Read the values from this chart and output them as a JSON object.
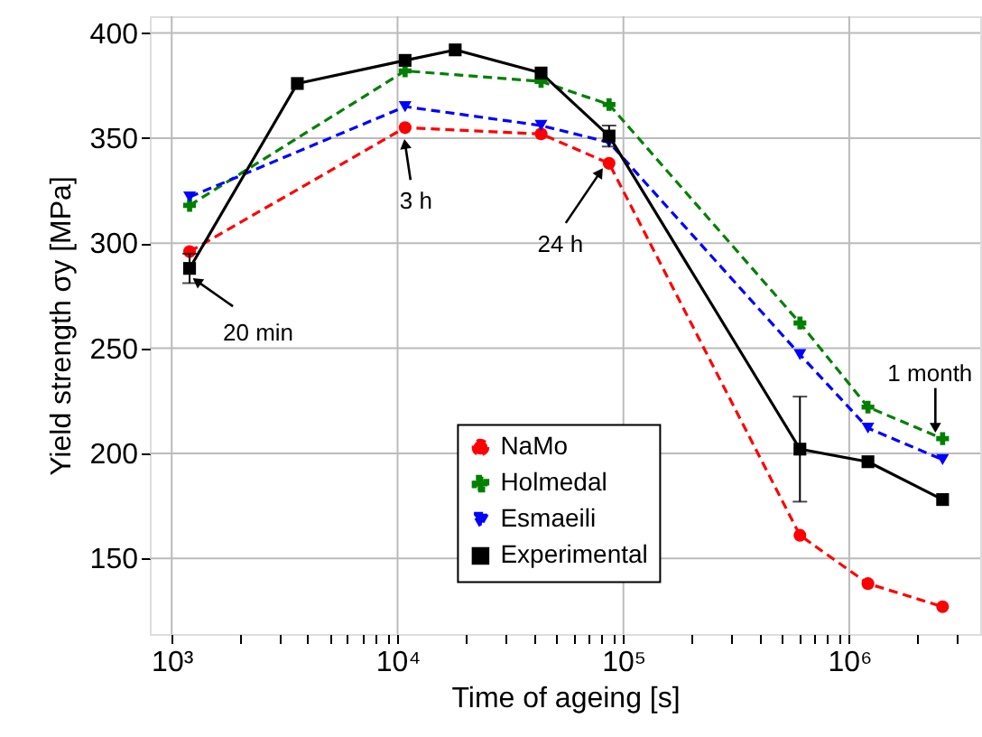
{
  "chart_data": {
    "type": "line",
    "xlabel": "Time of ageing [s]",
    "ylabel": "Yield strength σy [MPa]",
    "log": "x",
    "grid": true,
    "legend": "bottom",
    "xlim": [
      800,
      3800000
    ],
    "ylim": [
      114,
      408
    ],
    "xticks": [
      {
        "value": 1000,
        "label": "10³"
      },
      {
        "value": 2000,
        "label": null
      },
      {
        "value": 3000,
        "label": null
      },
      {
        "value": 4000,
        "label": null
      },
      {
        "value": 5000,
        "label": null
      },
      {
        "value": 6000,
        "label": null
      },
      {
        "value": 7000,
        "label": null
      },
      {
        "value": 8000,
        "label": null
      },
      {
        "value": 9000,
        "label": null
      },
      {
        "value": 10000,
        "label": "10⁴"
      },
      {
        "value": 20000,
        "label": null
      },
      {
        "value": 30000,
        "label": null
      },
      {
        "value": 40000,
        "label": null
      },
      {
        "value": 50000,
        "label": null
      },
      {
        "value": 60000,
        "label": null
      },
      {
        "value": 70000,
        "label": null
      },
      {
        "value": 80000,
        "label": null
      },
      {
        "value": 90000,
        "label": null
      },
      {
        "value": 100000,
        "label": "10⁵"
      },
      {
        "value": 200000,
        "label": null
      },
      {
        "value": 300000,
        "label": null
      },
      {
        "value": 400000,
        "label": null
      },
      {
        "value": 500000,
        "label": null
      },
      {
        "value": 600000,
        "label": null
      },
      {
        "value": 700000,
        "label": null
      },
      {
        "value": 800000,
        "label": null
      },
      {
        "value": 900000,
        "label": null
      },
      {
        "value": 1000000,
        "label": "10⁶"
      },
      {
        "value": 2000000,
        "label": null
      },
      {
        "value": 3000000,
        "label": null
      }
    ],
    "yticks": [
      150,
      200,
      250,
      300,
      350,
      400
    ],
    "series": [
      {
        "name": "NaMo",
        "color": "#ff0000",
        "marker": "circle",
        "line_style": "dashed",
        "x": [
          1200,
          10800,
          43200,
          86400,
          604800,
          1210000,
          2590000
        ],
        "values": [
          296,
          355,
          352,
          338,
          161,
          138,
          127
        ]
      },
      {
        "name": "Holmedal",
        "color": "#008000",
        "marker": "cross",
        "line_style": "dashed",
        "x": [
          1200,
          10800,
          43200,
          86400,
          604800,
          1210000,
          2590000
        ],
        "values": [
          318,
          382,
          377,
          366,
          262,
          222,
          207
        ]
      },
      {
        "name": "Esmaeili",
        "color": "#0000ff",
        "marker": "triangle",
        "line_style": "dashed",
        "x": [
          1200,
          10800,
          43200,
          86400,
          604800,
          1210000,
          2590000
        ],
        "values": [
          322,
          365,
          356,
          348,
          247,
          212,
          197
        ]
      },
      {
        "name": "Experimental",
        "color": "#000000",
        "marker": "square",
        "line_style": "solid",
        "x": [
          1200,
          3600,
          10800,
          18000,
          43200,
          86400,
          604800,
          1210000,
          2590000
        ],
        "values": [
          288,
          376,
          387,
          392,
          381,
          351,
          202,
          196,
          178
        ],
        "errors": [
          7,
          null,
          null,
          null,
          null,
          5,
          25,
          null,
          null
        ]
      }
    ],
    "annotations": [
      {
        "text": "20 min",
        "x": 1200,
        "y": 288
      },
      {
        "text": "3 h",
        "x": 10800,
        "y": 355
      },
      {
        "text": "24 h",
        "x": 86400,
        "y": 338
      },
      {
        "text": "1 month",
        "x": 2590000,
        "y": 207
      }
    ]
  }
}
